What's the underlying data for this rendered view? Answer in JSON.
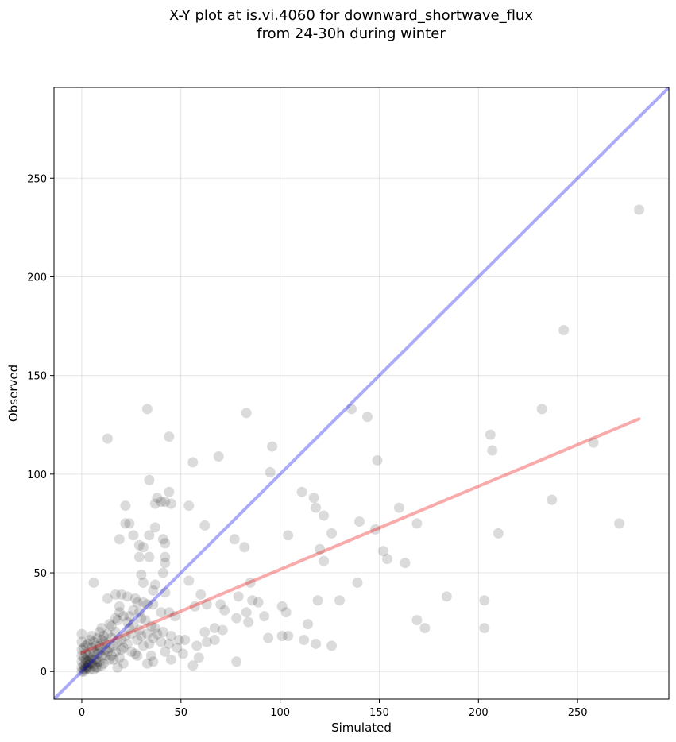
{
  "chart_data": {
    "type": "scatter",
    "title_line1": "X-Y plot at is.vi.4060 for downward_shortwave_flux",
    "title_line2": "from 24-30h during winter",
    "xlabel": "Simulated",
    "ylabel": "Observed",
    "xlim": [
      -14,
      296
    ],
    "ylim": [
      -14,
      296
    ],
    "x_ticks": [
      0,
      50,
      100,
      150,
      200,
      250
    ],
    "y_ticks": [
      0,
      50,
      100,
      150,
      200,
      250
    ],
    "grid": true,
    "colors": {
      "points": "#000000",
      "one_to_one": "#0000ee",
      "fit": "#ee0000"
    },
    "one_to_one_line": {
      "from": [
        -14,
        -14
      ],
      "to": [
        296,
        296
      ]
    },
    "fit_line": {
      "from": [
        0,
        9.5
      ],
      "to": [
        281,
        128
      ]
    },
    "series": [
      {
        "points": [
          [
            281,
            234
          ],
          [
            243,
            173
          ],
          [
            232,
            133
          ],
          [
            136,
            133
          ],
          [
            144,
            129
          ],
          [
            33,
            133
          ],
          [
            83,
            131
          ],
          [
            206,
            120
          ],
          [
            207,
            112
          ],
          [
            258,
            116
          ],
          [
            13,
            118
          ],
          [
            44,
            119
          ],
          [
            96,
            114
          ],
          [
            69,
            109
          ],
          [
            56,
            106
          ],
          [
            149,
            107
          ],
          [
            95,
            101
          ],
          [
            34,
            97
          ],
          [
            111,
            91
          ],
          [
            117,
            88
          ],
          [
            44,
            91
          ],
          [
            38,
            88
          ],
          [
            40,
            86
          ],
          [
            42,
            86
          ],
          [
            22,
            84
          ],
          [
            54,
            84
          ],
          [
            118,
            83
          ],
          [
            160,
            83
          ],
          [
            237,
            87
          ],
          [
            45,
            85
          ],
          [
            37,
            85
          ],
          [
            122,
            79
          ],
          [
            22,
            75
          ],
          [
            24,
            75
          ],
          [
            62,
            74
          ],
          [
            140,
            76
          ],
          [
            169,
            75
          ],
          [
            271,
            75
          ],
          [
            210,
            70
          ],
          [
            126,
            70
          ],
          [
            104,
            69
          ],
          [
            148,
            72
          ],
          [
            26,
            69
          ],
          [
            19,
            67
          ],
          [
            34,
            69
          ],
          [
            37,
            73
          ],
          [
            29,
            64
          ],
          [
            31,
            63
          ],
          [
            77,
            67
          ],
          [
            41,
            67
          ],
          [
            42,
            65
          ],
          [
            82,
            63
          ],
          [
            120,
            62
          ],
          [
            152,
            61
          ],
          [
            154,
            57
          ],
          [
            163,
            55
          ],
          [
            122,
            56
          ],
          [
            29,
            58
          ],
          [
            34,
            58
          ],
          [
            42,
            58
          ],
          [
            42,
            55
          ],
          [
            41,
            50
          ],
          [
            30,
            49
          ],
          [
            31,
            45
          ],
          [
            54,
            46
          ],
          [
            37,
            44
          ],
          [
            139,
            45
          ],
          [
            85,
            45
          ],
          [
            6,
            45
          ],
          [
            36,
            41
          ],
          [
            42,
            40
          ],
          [
            27,
            37
          ],
          [
            13,
            37
          ],
          [
            20,
            39
          ],
          [
            17,
            39
          ],
          [
            23,
            38
          ],
          [
            28,
            35
          ],
          [
            31,
            35
          ],
          [
            33,
            34
          ],
          [
            36,
            34
          ],
          [
            60,
            39
          ],
          [
            79,
            38
          ],
          [
            63,
            34
          ],
          [
            70,
            34
          ],
          [
            86,
            36
          ],
          [
            89,
            35
          ],
          [
            119,
            36
          ],
          [
            130,
            36
          ],
          [
            24,
            28
          ],
          [
            29,
            30
          ],
          [
            40,
            30
          ],
          [
            44,
            30
          ],
          [
            47,
            28
          ],
          [
            57,
            33
          ],
          [
            72,
            31
          ],
          [
            78,
            27
          ],
          [
            83,
            30
          ],
          [
            92,
            28
          ],
          [
            101,
            33
          ],
          [
            103,
            30
          ],
          [
            114,
            24
          ],
          [
            184,
            38
          ],
          [
            203,
            36
          ],
          [
            169,
            26
          ],
          [
            173,
            22
          ],
          [
            203,
            22
          ],
          [
            62,
            20
          ],
          [
            67,
            22
          ],
          [
            71,
            21
          ],
          [
            84,
            25
          ],
          [
            94,
            17
          ],
          [
            101,
            18
          ],
          [
            104,
            18
          ],
          [
            112,
            16
          ],
          [
            118,
            14
          ],
          [
            126,
            13
          ],
          [
            49,
            16
          ],
          [
            52,
            16
          ],
          [
            58,
            13
          ],
          [
            63,
            15
          ],
          [
            67,
            16
          ],
          [
            56,
            3
          ],
          [
            59,
            7
          ],
          [
            78,
            5
          ],
          [
            38,
            19
          ],
          [
            41,
            20
          ],
          [
            45,
            18
          ],
          [
            48,
            12
          ],
          [
            51,
            9
          ],
          [
            45,
            6
          ],
          [
            42,
            10
          ],
          [
            35,
            8
          ],
          [
            33,
            4
          ],
          [
            36,
            5
          ],
          [
            28,
            8
          ],
          [
            25,
            10
          ],
          [
            21,
            4
          ],
          [
            18,
            2
          ],
          [
            14,
            6
          ],
          [
            12,
            8
          ],
          [
            10,
            3
          ],
          [
            8,
            2
          ],
          [
            6,
            1
          ],
          [
            5,
            4
          ],
          [
            4,
            6
          ],
          [
            3,
            3
          ],
          [
            2,
            1
          ],
          [
            1,
            0
          ],
          [
            0,
            2
          ],
          [
            0,
            5
          ],
          [
            0,
            8
          ],
          [
            0,
            11
          ],
          [
            0,
            15
          ],
          [
            0,
            19
          ],
          [
            1,
            12
          ],
          [
            2,
            9
          ],
          [
            3,
            14
          ],
          [
            4,
            16
          ],
          [
            5,
            18
          ],
          [
            6,
            10
          ],
          [
            7,
            13
          ],
          [
            8,
            17
          ],
          [
            9,
            20
          ],
          [
            10,
            22
          ],
          [
            11,
            15
          ],
          [
            12,
            11
          ],
          [
            13,
            19
          ],
          [
            14,
            24
          ],
          [
            15,
            17
          ],
          [
            16,
            13
          ],
          [
            17,
            20
          ],
          [
            18,
            26
          ],
          [
            19,
            30
          ],
          [
            20,
            16
          ],
          [
            21,
            12
          ],
          [
            22,
            18
          ],
          [
            23,
            14
          ],
          [
            24,
            22
          ],
          [
            25,
            19
          ],
          [
            26,
            24
          ],
          [
            27,
            9
          ],
          [
            28,
            16
          ],
          [
            29,
            21
          ],
          [
            30,
            18
          ],
          [
            31,
            13
          ],
          [
            32,
            26
          ],
          [
            33,
            19
          ],
          [
            34,
            14
          ],
          [
            35,
            23
          ],
          [
            36,
            17
          ],
          [
            2,
            4
          ],
          [
            3,
            2
          ],
          [
            4,
            9
          ],
          [
            5,
            7
          ],
          [
            6,
            3
          ],
          [
            7,
            6
          ],
          [
            8,
            9
          ],
          [
            9,
            5
          ],
          [
            10,
            8
          ],
          [
            11,
            4
          ],
          [
            12,
            14
          ],
          [
            13,
            10
          ],
          [
            14,
            12
          ],
          [
            15,
            8
          ],
          [
            16,
            6
          ],
          [
            17,
            10
          ],
          [
            18,
            15
          ],
          [
            19,
            7
          ],
          [
            20,
            11
          ],
          [
            1,
            3
          ],
          [
            2,
            6
          ],
          [
            3,
            8
          ],
          [
            4,
            1
          ],
          [
            5,
            12
          ],
          [
            6,
            15
          ],
          [
            7,
            2
          ],
          [
            8,
            11
          ],
          [
            9,
            13
          ],
          [
            10,
            16
          ],
          [
            11,
            18
          ],
          [
            15,
            23
          ],
          [
            17,
            27
          ],
          [
            19,
            33
          ],
          [
            21,
            28
          ],
          [
            23,
            25
          ],
          [
            26,
            31
          ],
          [
            30,
            27
          ],
          [
            37,
            22
          ],
          [
            40,
            15
          ],
          [
            44,
            14
          ],
          [
            1,
            1
          ],
          [
            0,
            0
          ],
          [
            2,
            2
          ],
          [
            3,
            5
          ],
          [
            1,
            7
          ],
          [
            2,
            13
          ],
          [
            4,
            4
          ],
          [
            6,
            6
          ],
          [
            8,
            5
          ],
          [
            9,
            10
          ]
        ]
      }
    ]
  }
}
